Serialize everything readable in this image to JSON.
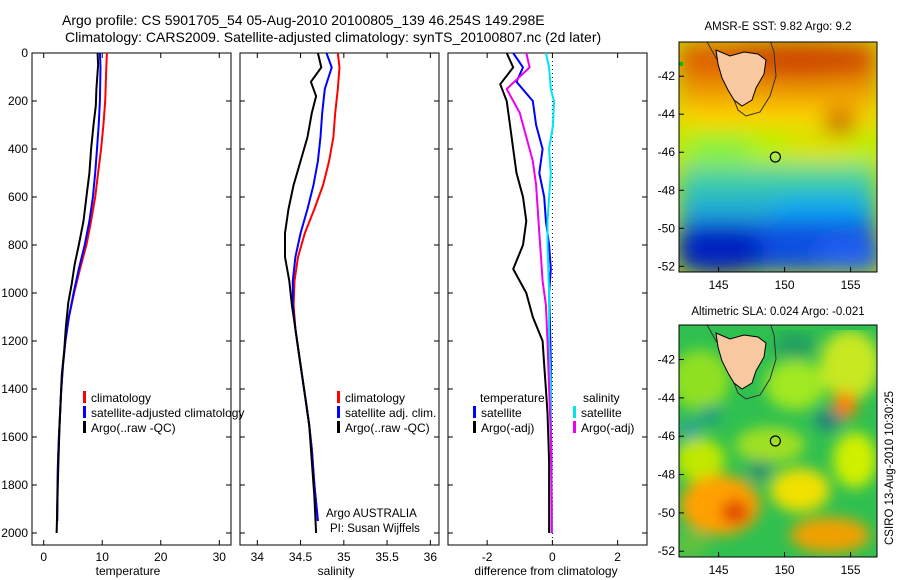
{
  "title": {
    "line1": "Argo profile: CS 5901705_54 05-Aug-2010 20100805_139 46.254S 149.298E",
    "line2": "Climatology: CARS2009. Satellite-adjusted climatology: synTS_20100807.nc (2d later)"
  },
  "credit": "CSIRO 13-Aug-2010 10:30:25",
  "colors": {
    "climatology": "#ff0000",
    "satellite": "#0000ff",
    "argo": "#000000",
    "sal_satellite": "#00e5ee",
    "sal_argo": "#ee00ee",
    "land": "#f8c8a0",
    "marker": "#000000"
  },
  "chart_data": [
    {
      "type": "line",
      "xlabel": "temperature",
      "ylabel": "",
      "xlim": [
        -2,
        32
      ],
      "ylim": [
        2050,
        0
      ],
      "xticks": [
        "0",
        "10",
        "20",
        "30"
      ],
      "yticks": [
        "0",
        "200",
        "400",
        "600",
        "800",
        "1000",
        "1200",
        "1400",
        "1600",
        "1800",
        "2000"
      ],
      "legend": [
        "climatology",
        "satellite-adjusted climatology",
        "Argo(..raw -QC)"
      ],
      "series": [
        {
          "name": "climatology",
          "color": "climatology",
          "x": [
            10.8,
            10.7,
            10.5,
            10.2,
            9.8,
            9.3,
            8.8,
            8.1,
            7.3,
            6.2,
            5.2,
            4.3,
            3.7,
            3.3,
            3.0,
            2.8,
            2.6,
            2.45,
            2.35,
            2.3
          ],
          "y": [
            0,
            60,
            200,
            300,
            400,
            500,
            600,
            700,
            800,
            900,
            1000,
            1100,
            1200,
            1300,
            1400,
            1500,
            1600,
            1700,
            1800,
            1950
          ]
        },
        {
          "name": "satellite-adjusted climatology",
          "color": "satellite",
          "x": [
            9.6,
            9.7,
            9.6,
            9.4,
            9.1,
            8.8,
            8.4,
            7.8,
            7.0,
            6.0,
            5.1,
            4.3,
            3.7,
            3.3,
            3.0,
            2.8,
            2.6,
            2.45,
            2.35,
            2.3
          ],
          "y": [
            0,
            60,
            200,
            300,
            400,
            500,
            600,
            700,
            800,
            900,
            1000,
            1100,
            1200,
            1300,
            1400,
            1500,
            1600,
            1700,
            1800,
            1950
          ]
        },
        {
          "name": "Argo(..raw -QC)",
          "color": "argo",
          "x": [
            9.2,
            9.3,
            9.0,
            8.9,
            8.5,
            8.1,
            7.8,
            7.3,
            6.8,
            6.0,
            5.3,
            4.8,
            4.2,
            3.8,
            3.5,
            3.1,
            2.9,
            2.7,
            2.55,
            2.4,
            2.3,
            2.25,
            2.2
          ],
          "y": [
            0,
            50,
            150,
            220,
            300,
            400,
            500,
            600,
            700,
            800,
            880,
            960,
            1040,
            1140,
            1240,
            1340,
            1440,
            1560,
            1680,
            1800,
            1900,
            1960,
            2000
          ]
        }
      ]
    },
    {
      "type": "line",
      "xlabel": "salinity",
      "ylabel": "",
      "xlim": [
        33.8,
        36.1
      ],
      "ylim": [
        2050,
        0
      ],
      "xticks": [
        "34",
        "34.5",
        "35",
        "35.5",
        "36"
      ],
      "legend": [
        "climatology",
        "satellite adj. clim.",
        "Argo(..raw -QC)"
      ],
      "annotation": [
        "Argo AUSTRALIA",
        "PI: Susan Wijffels"
      ],
      "series": [
        {
          "name": "climatology",
          "color": "climatology",
          "x": [
            34.93,
            34.95,
            34.93,
            34.9,
            34.88,
            34.83,
            34.76,
            34.66,
            34.55,
            34.47,
            34.43,
            34.42,
            34.44,
            34.48,
            34.52,
            34.56,
            34.6,
            34.63,
            34.66,
            34.7
          ],
          "y": [
            0,
            60,
            150,
            250,
            350,
            450,
            550,
            650,
            750,
            850,
            950,
            1050,
            1150,
            1250,
            1350,
            1450,
            1550,
            1650,
            1800,
            1950
          ]
        },
        {
          "name": "satellite adj. clim.",
          "color": "satellite",
          "x": [
            34.8,
            34.86,
            34.78,
            34.75,
            34.73,
            34.7,
            34.65,
            34.58,
            34.5,
            34.44,
            34.41,
            34.41,
            34.44,
            34.48,
            34.52,
            34.56,
            34.6,
            34.63,
            34.66,
            34.7
          ],
          "y": [
            0,
            60,
            150,
            250,
            350,
            450,
            550,
            650,
            750,
            850,
            950,
            1050,
            1150,
            1250,
            1350,
            1450,
            1550,
            1650,
            1800,
            1950
          ]
        },
        {
          "name": "Argo(..raw -QC)",
          "color": "argo",
          "x": [
            34.7,
            34.74,
            34.62,
            34.68,
            34.63,
            34.58,
            34.5,
            34.42,
            34.36,
            34.32,
            34.32,
            34.37,
            34.4,
            34.44,
            34.48,
            34.52,
            34.56,
            34.6,
            34.63,
            34.66,
            34.68
          ],
          "y": [
            0,
            60,
            120,
            180,
            250,
            350,
            450,
            550,
            650,
            750,
            850,
            950,
            1050,
            1150,
            1250,
            1350,
            1450,
            1550,
            1700,
            1850,
            2000
          ]
        }
      ]
    },
    {
      "type": "line",
      "xlabel": "difference from climatology",
      "ylabel": "",
      "xlim": [
        -3.2,
        2.9
      ],
      "ylim": [
        2050,
        0
      ],
      "xticks": [
        "-2",
        "0",
        "2"
      ],
      "zero_line": "dotted",
      "legend": {
        "temperature_header": "temperature",
        "salinity_header": "salinity",
        "temperature": [
          "satellite",
          "Argo(-adj)"
        ],
        "salinity": [
          "satellite",
          "Argo(-adj)"
        ]
      },
      "series": [
        {
          "name": "satellite",
          "group": "temperature",
          "color": "satellite",
          "x": [
            -1.2,
            -0.9,
            -1.1,
            -0.6,
            -0.5,
            -0.3,
            -0.4,
            -0.25,
            -0.2,
            -0.1,
            -0.05,
            -0.1,
            -0.08,
            -0.05,
            -0.05,
            -0.03,
            -0.02,
            -0.02
          ],
          "y": [
            0,
            60,
            120,
            200,
            300,
            400,
            500,
            600,
            700,
            800,
            900,
            1000,
            1100,
            1300,
            1500,
            1700,
            1900,
            2000
          ]
        },
        {
          "name": "Argo(-adj)",
          "group": "temperature",
          "color": "argo",
          "x": [
            -1.4,
            -1.2,
            -1.6,
            -1.4,
            -1.3,
            -1.2,
            -1.1,
            -0.9,
            -0.8,
            -0.9,
            -1.2,
            -0.8,
            -0.6,
            -0.3,
            -0.25,
            -0.2,
            -0.15,
            -0.1,
            -0.1,
            -0.1
          ],
          "y": [
            0,
            60,
            130,
            200,
            300,
            400,
            500,
            600,
            700,
            800,
            900,
            1000,
            1100,
            1200,
            1300,
            1400,
            1500,
            1700,
            1900,
            2000
          ]
        },
        {
          "name": "satellite",
          "group": "salinity",
          "color": "sal_satellite",
          "x": [
            -0.2,
            -0.1,
            -0.05,
            0.05,
            0.02,
            -0.1,
            -0.05,
            -0.1,
            -0.15,
            -0.15,
            -0.1,
            -0.1,
            -0.05,
            -0.05,
            -0.03,
            -0.02
          ],
          "y": [
            0,
            60,
            150,
            200,
            300,
            400,
            500,
            600,
            700,
            800,
            1000,
            1200,
            1400,
            1600,
            1800,
            2000
          ]
        },
        {
          "name": "Argo(-adj)",
          "group": "salinity",
          "color": "sal_argo",
          "x": [
            -0.8,
            -0.7,
            -1.4,
            -1.0,
            -0.8,
            -0.6,
            -0.5,
            -0.45,
            -0.4,
            -0.35,
            -0.3,
            -0.2,
            -0.15,
            -0.1,
            -0.05,
            -0.03,
            -0.02
          ],
          "y": [
            0,
            60,
            150,
            250,
            350,
            450,
            550,
            650,
            750,
            850,
            950,
            1050,
            1200,
            1400,
            1600,
            1800,
            2000
          ]
        }
      ]
    },
    {
      "type": "heatmap",
      "title": "AMSR-E SST: 9.82 Argo: 9.2",
      "xlim": [
        142,
        157
      ],
      "ylim": [
        -52.3,
        -40.2
      ],
      "xticks": [
        "145",
        "150",
        "155"
      ],
      "yticks": [
        "-42",
        "-44",
        "-46",
        "-48",
        "-50",
        "-52"
      ],
      "marker": {
        "lon": 149.3,
        "lat": -46.25
      },
      "colormap": "rainbow (blue = cold, red = warm)"
    },
    {
      "type": "heatmap",
      "title": "Altimetric SLA: 0.024 Argo: -0.021",
      "xlim": [
        142,
        157
      ],
      "ylim": [
        -52.3,
        -40.2
      ],
      "xticks": [
        "145",
        "150",
        "155"
      ],
      "yticks": [
        "-42",
        "-44",
        "-46",
        "-48",
        "-50",
        "-52"
      ],
      "marker": {
        "lon": 149.3,
        "lat": -46.25
      },
      "colormap": "rainbow (blue = low, red = high)"
    }
  ]
}
